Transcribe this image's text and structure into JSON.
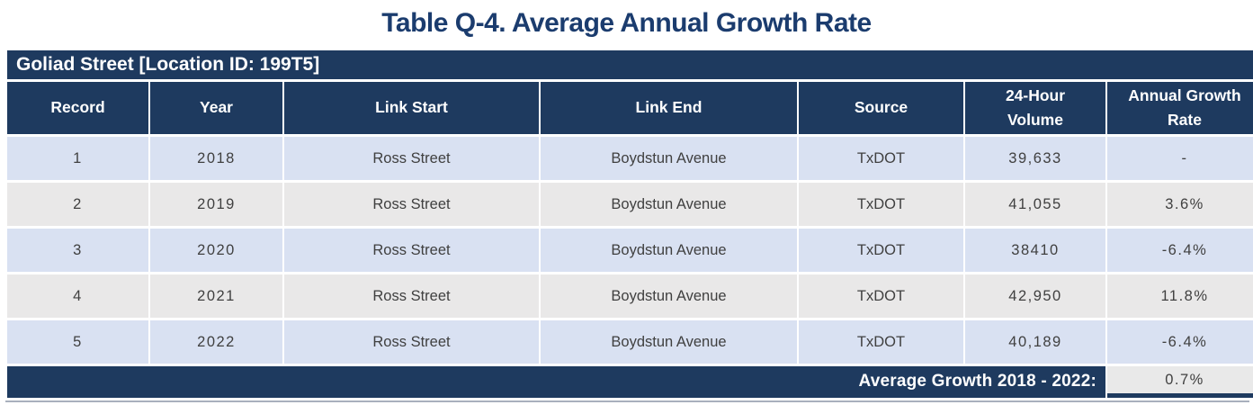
{
  "title": "Table Q-4. Average Annual Growth Rate",
  "table": {
    "location_header": "Goliad Street [Location ID: 199T5]",
    "columns": [
      "Record",
      "Year",
      "Link Start",
      "Link End",
      "Source",
      "24-Hour Volume",
      "Annual Growth Rate"
    ],
    "rows": [
      {
        "record": "1",
        "year": "2018",
        "link_start": "Ross Street",
        "link_end": "Boydstun Avenue",
        "source": "TxDOT",
        "volume": "39,633",
        "growth": "-"
      },
      {
        "record": "2",
        "year": "2019",
        "link_start": "Ross Street",
        "link_end": "Boydstun Avenue",
        "source": "TxDOT",
        "volume": "41,055",
        "growth": "3.6%"
      },
      {
        "record": "3",
        "year": "2020",
        "link_start": "Ross Street",
        "link_end": "Boydstun Avenue",
        "source": "TxDOT",
        "volume": "38410",
        "growth": "-6.4%"
      },
      {
        "record": "4",
        "year": "2021",
        "link_start": "Ross Street",
        "link_end": "Boydstun Avenue",
        "source": "TxDOT",
        "volume": "42,950",
        "growth": "11.8%"
      },
      {
        "record": "5",
        "year": "2022",
        "link_start": "Ross Street",
        "link_end": "Boydstun Avenue",
        "source": "TxDOT",
        "volume": "40,189",
        "growth": "-6.4%"
      }
    ],
    "footer": {
      "label": "Average Growth 2018 - 2022:",
      "value": "0.7%"
    }
  },
  "colors": {
    "navy": "#1E3A5F",
    "title_navy": "#1B3C6E",
    "row_blue": "#D9E1F2",
    "row_gray": "#E9E8E8",
    "footer_value_bg": "#E9E9E9"
  }
}
